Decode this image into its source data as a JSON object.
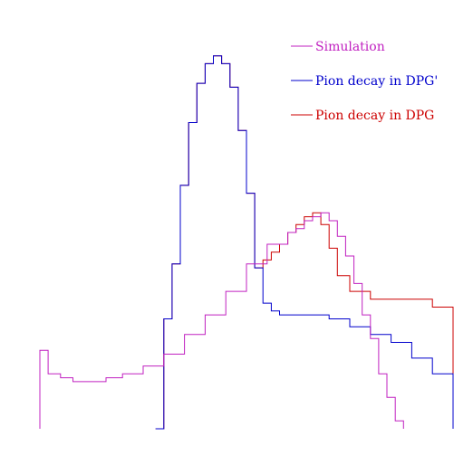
{
  "chart_data": {
    "type": "line",
    "title": "",
    "xlabel": "",
    "ylabel": "",
    "xlim": [
      0,
      1
    ],
    "ylim": [
      0,
      1
    ],
    "grid": false,
    "axes_visible": false,
    "style": "step-histogram",
    "legend_placement": "top-right",
    "series": [
      {
        "name": "Simulation",
        "color": "#c020c0",
        "x": [
          0.0,
          0.02,
          0.05,
          0.08,
          0.12,
          0.16,
          0.2,
          0.25,
          0.3,
          0.35,
          0.4,
          0.45,
          0.5,
          0.55,
          0.6,
          0.62,
          0.64,
          0.66,
          0.68,
          0.7,
          0.72,
          0.74,
          0.76,
          0.78,
          0.8,
          0.82,
          0.84,
          0.86,
          0.88
        ],
        "y": [
          0.2,
          0.14,
          0.13,
          0.12,
          0.12,
          0.13,
          0.14,
          0.16,
          0.19,
          0.24,
          0.29,
          0.35,
          0.42,
          0.47,
          0.5,
          0.51,
          0.53,
          0.54,
          0.55,
          0.53,
          0.49,
          0.44,
          0.37,
          0.29,
          0.23,
          0.14,
          0.08,
          0.02,
          0.0
        ]
      },
      {
        "name": "Pion decay in DPG'",
        "color": "#0000cc",
        "x": [
          0.28,
          0.3,
          0.32,
          0.34,
          0.36,
          0.38,
          0.4,
          0.42,
          0.44,
          0.46,
          0.48,
          0.5,
          0.52,
          0.54,
          0.56,
          0.58,
          0.6,
          0.65,
          0.7,
          0.75,
          0.8,
          0.85,
          0.9,
          0.95,
          1.0
        ],
        "y": [
          0.0,
          0.28,
          0.42,
          0.62,
          0.78,
          0.88,
          0.93,
          0.95,
          0.93,
          0.87,
          0.76,
          0.6,
          0.41,
          0.32,
          0.3,
          0.29,
          0.29,
          0.29,
          0.28,
          0.26,
          0.24,
          0.22,
          0.18,
          0.14,
          0.0
        ]
      },
      {
        "name": "Pion decay in DPG",
        "color": "#cc0000",
        "x": [
          0.28,
          0.3,
          0.32,
          0.34,
          0.36,
          0.38,
          0.4,
          0.42,
          0.44,
          0.46,
          0.48,
          0.5,
          0.52,
          0.54,
          0.56,
          0.58,
          0.6,
          0.62,
          0.64,
          0.66,
          0.68,
          0.7,
          0.72,
          0.75,
          0.8,
          0.85,
          0.9,
          0.95,
          1.0
        ],
        "y": [
          0.0,
          0.28,
          0.42,
          0.62,
          0.78,
          0.88,
          0.93,
          0.95,
          0.93,
          0.87,
          0.76,
          0.6,
          0.41,
          0.43,
          0.45,
          0.47,
          0.5,
          0.52,
          0.54,
          0.55,
          0.52,
          0.46,
          0.39,
          0.35,
          0.33,
          0.33,
          0.33,
          0.31,
          0.0
        ]
      }
    ]
  }
}
